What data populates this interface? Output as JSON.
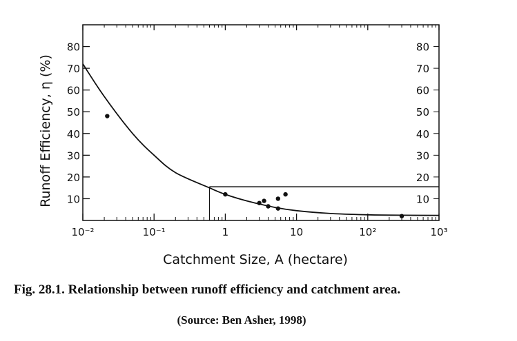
{
  "chart_data": {
    "type": "scatter",
    "xlabel": "Catchment Size, A (hectare)",
    "ylabel": "Runoff Efficiency, η (%)",
    "xscale": "log",
    "xlim": [
      0.01,
      1000
    ],
    "ylim": [
      0,
      90
    ],
    "x_ticks": [
      {
        "value": 0.01,
        "label": "10⁻²"
      },
      {
        "value": 0.1,
        "label": "10⁻¹"
      },
      {
        "value": 1,
        "label": "1"
      },
      {
        "value": 10,
        "label": "10"
      },
      {
        "value": 100,
        "label": "10²"
      },
      {
        "value": 1000,
        "label": "10³"
      }
    ],
    "y_ticks": [
      10,
      20,
      30,
      40,
      50,
      60,
      70,
      80
    ],
    "series": [
      {
        "kind": "curve",
        "points": [
          [
            0.01,
            72
          ],
          [
            0.02,
            57
          ],
          [
            0.05,
            40
          ],
          [
            0.1,
            30
          ],
          [
            0.2,
            22
          ],
          [
            0.6,
            15
          ],
          [
            1,
            12
          ],
          [
            2,
            9
          ],
          [
            5,
            6
          ],
          [
            10,
            4.5
          ],
          [
            30,
            3.2
          ],
          [
            100,
            2.6
          ],
          [
            300,
            2.4
          ],
          [
            1000,
            2.3
          ]
        ]
      },
      {
        "kind": "points",
        "points": [
          [
            0.022,
            48
          ],
          [
            1,
            12
          ],
          [
            3,
            8
          ],
          [
            3.5,
            9
          ],
          [
            4,
            6.5
          ],
          [
            5.5,
            5.5
          ],
          [
            5.5,
            10
          ],
          [
            7,
            12
          ],
          [
            300,
            2
          ]
        ]
      }
    ],
    "reference_lines": {
      "x": 0.6,
      "y": 15.5
    },
    "grid": false
  },
  "caption": {
    "title": "Fig. 28.1. Relationship between runoff efficiency and catchment area.",
    "source": "(Source: Ben Asher, 1998)"
  },
  "colors": {
    "ink": "#111111",
    "background": "#ffffff"
  }
}
